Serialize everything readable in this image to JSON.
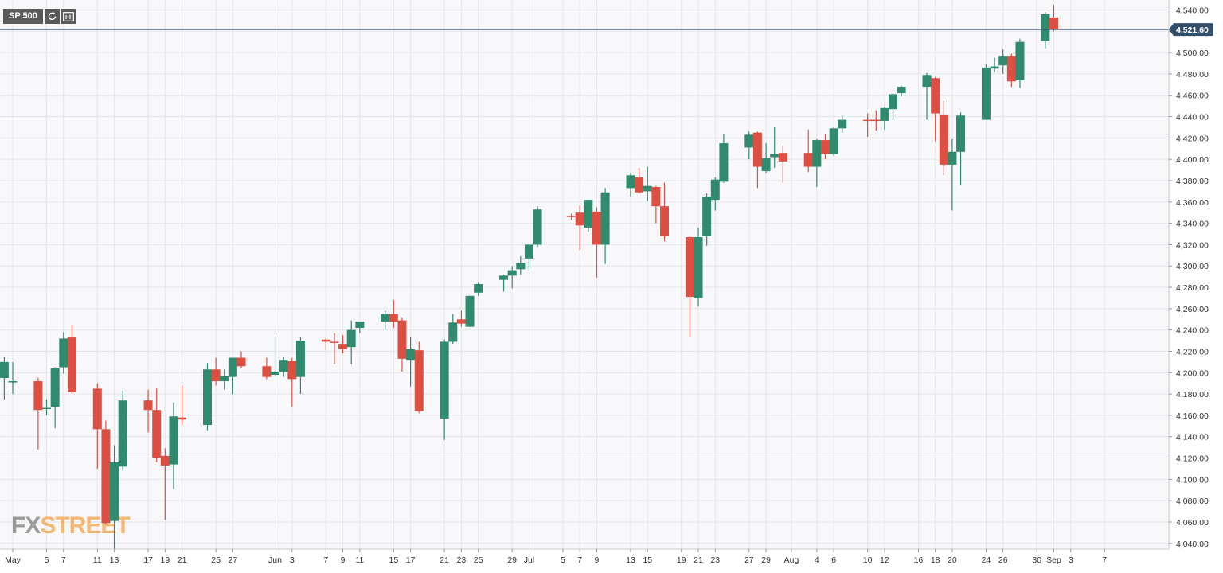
{
  "symbol": "SP 500",
  "watermark": "FXSTREET",
  "toolbar": {
    "refresh_icon": "refresh-icon",
    "settings_icon": "chart-settings-icon"
  },
  "colors": {
    "up": "#2f8a6e",
    "down": "#dd4f43",
    "wick_up": "#2f8a6e",
    "wick_down": "#dd4f43",
    "price_line": "#314f6b",
    "grid": "#e6e6ea",
    "axis_text": "#333333",
    "watermark_fx": "#7b7b7b",
    "watermark_street": "#f3a34a"
  },
  "chart_data": {
    "type": "candlestick",
    "current_price": 4521.6,
    "current_price_label": "4,521.60",
    "grid": true,
    "ylim": [
      4034,
      4547
    ],
    "y_ticks": [
      4040,
      4060,
      4080,
      4100,
      4120,
      4140,
      4160,
      4180,
      4200,
      4220,
      4240,
      4260,
      4280,
      4300,
      4320,
      4340,
      4360,
      4380,
      4400,
      4420,
      4440,
      4460,
      4480,
      4500,
      4520,
      4540
    ],
    "x_ticks": [
      {
        "label": "May",
        "day": 0
      },
      {
        "label": "5",
        "day": 4
      },
      {
        "label": "7",
        "day": 6
      },
      {
        "label": "11",
        "day": 10
      },
      {
        "label": "13",
        "day": 12
      },
      {
        "label": "17",
        "day": 16
      },
      {
        "label": "19",
        "day": 18
      },
      {
        "label": "21",
        "day": 20
      },
      {
        "label": "25",
        "day": 24
      },
      {
        "label": "27",
        "day": 26
      },
      {
        "label": "Jun",
        "day": 31
      },
      {
        "label": "3",
        "day": 33
      },
      {
        "label": "7",
        "day": 37
      },
      {
        "label": "9",
        "day": 39
      },
      {
        "label": "11",
        "day": 41
      },
      {
        "label": "15",
        "day": 45
      },
      {
        "label": "17",
        "day": 47
      },
      {
        "label": "21",
        "day": 51
      },
      {
        "label": "23",
        "day": 53
      },
      {
        "label": "25",
        "day": 55
      },
      {
        "label": "29",
        "day": 59
      },
      {
        "label": "Jul",
        "day": 61
      },
      {
        "label": "5",
        "day": 65
      },
      {
        "label": "7",
        "day": 67
      },
      {
        "label": "9",
        "day": 69
      },
      {
        "label": "13",
        "day": 73
      },
      {
        "label": "15",
        "day": 75
      },
      {
        "label": "19",
        "day": 79
      },
      {
        "label": "21",
        "day": 81
      },
      {
        "label": "23",
        "day": 83
      },
      {
        "label": "27",
        "day": 87
      },
      {
        "label": "29",
        "day": 89
      },
      {
        "label": "Aug",
        "day": 92
      },
      {
        "label": "4",
        "day": 95
      },
      {
        "label": "6",
        "day": 97
      },
      {
        "label": "10",
        "day": 101
      },
      {
        "label": "12",
        "day": 103
      },
      {
        "label": "16",
        "day": 107
      },
      {
        "label": "18",
        "day": 109
      },
      {
        "label": "20",
        "day": 111
      },
      {
        "label": "24",
        "day": 115
      },
      {
        "label": "26",
        "day": 117
      },
      {
        "label": "30",
        "day": 121
      },
      {
        "label": "Sep",
        "day": 123
      },
      {
        "label": "3",
        "day": 125
      },
      {
        "label": "7",
        "day": 129
      }
    ],
    "candles": [
      {
        "day": -1,
        "open": 4195,
        "high": 4215,
        "low": 4175,
        "close": 4210
      },
      {
        "day": 0,
        "open": 4191,
        "high": 4210,
        "low": 4180,
        "close": 4192
      },
      {
        "day": 3,
        "open": 4192,
        "high": 4195,
        "low": 4128,
        "close": 4165
      },
      {
        "day": 4,
        "open": 4166,
        "high": 4175,
        "low": 4160,
        "close": 4167
      },
      {
        "day": 5,
        "open": 4168,
        "high": 4205,
        "low": 4148,
        "close": 4204
      },
      {
        "day": 6,
        "open": 4205,
        "high": 4238,
        "low": 4199,
        "close": 4232
      },
      {
        "day": 7,
        "open": 4233,
        "high": 4245,
        "low": 4180,
        "close": 4182
      },
      {
        "day": 10,
        "open": 4185,
        "high": 4190,
        "low": 4110,
        "close": 4147
      },
      {
        "day": 11,
        "open": 4147,
        "high": 4155,
        "low": 4058,
        "close": 4059
      },
      {
        "day": 12,
        "open": 4061,
        "high": 4132,
        "low": 4035,
        "close": 4116
      },
      {
        "day": 13,
        "open": 4112,
        "high": 4183,
        "low": 4108,
        "close": 4174
      },
      {
        "day": 16,
        "open": 4174,
        "high": 4184,
        "low": 4144,
        "close": 4165
      },
      {
        "day": 17,
        "open": 4165,
        "high": 4185,
        "low": 4116,
        "close": 4120
      },
      {
        "day": 18,
        "open": 4122,
        "high": 4129,
        "low": 4062,
        "close": 4113
      },
      {
        "day": 19,
        "open": 4114,
        "high": 4172,
        "low": 4091,
        "close": 4159
      },
      {
        "day": 20,
        "open": 4158,
        "high": 4188,
        "low": 4151,
        "close": 4156
      },
      {
        "day": 23,
        "open": 4151,
        "high": 4209,
        "low": 4146,
        "close": 4203
      },
      {
        "day": 24,
        "open": 4203,
        "high": 4214,
        "low": 4188,
        "close": 4192
      },
      {
        "day": 25,
        "open": 4192,
        "high": 4203,
        "low": 4184,
        "close": 4197
      },
      {
        "day": 26,
        "open": 4196,
        "high": 4214,
        "low": 4180,
        "close": 4214
      },
      {
        "day": 27,
        "open": 4214,
        "high": 4220,
        "low": 4204,
        "close": 4206
      },
      {
        "day": 30,
        "open": 4206,
        "high": 4214,
        "low": 4194,
        "close": 4196
      },
      {
        "day": 31,
        "open": 4198,
        "high": 4234,
        "low": 4197,
        "close": 4201
      },
      {
        "day": 32,
        "open": 4201,
        "high": 4215,
        "low": 4196,
        "close": 4212
      },
      {
        "day": 33,
        "open": 4211,
        "high": 4214,
        "low": 4168,
        "close": 4194
      },
      {
        "day": 34,
        "open": 4196,
        "high": 4233,
        "low": 4180,
        "close": 4230
      },
      {
        "day": 37,
        "open": 4231,
        "high": 4233,
        "low": 4221,
        "close": 4229
      },
      {
        "day": 38,
        "open": 4229,
        "high": 4237,
        "low": 4208,
        "close": 4228
      },
      {
        "day": 39,
        "open": 4227,
        "high": 4235,
        "low": 4218,
        "close": 4222
      },
      {
        "day": 40,
        "open": 4224,
        "high": 4249,
        "low": 4208,
        "close": 4240
      },
      {
        "day": 41,
        "open": 4242,
        "high": 4248,
        "low": 4237,
        "close": 4248
      },
      {
        "day": 44,
        "open": 4248,
        "high": 4258,
        "low": 4240,
        "close": 4255
      },
      {
        "day": 45,
        "open": 4255,
        "high": 4268,
        "low": 4242,
        "close": 4248
      },
      {
        "day": 46,
        "open": 4249,
        "high": 4252,
        "low": 4201,
        "close": 4213
      },
      {
        "day": 47,
        "open": 4212,
        "high": 4233,
        "low": 4187,
        "close": 4222
      },
      {
        "day": 48,
        "open": 4221,
        "high": 4229,
        "low": 4162,
        "close": 4164
      },
      {
        "day": 51,
        "open": 4157,
        "high": 4231,
        "low": 4137,
        "close": 4229
      },
      {
        "day": 52,
        "open": 4229,
        "high": 4255,
        "low": 4227,
        "close": 4247
      },
      {
        "day": 53,
        "open": 4250,
        "high": 4258,
        "low": 4243,
        "close": 4246
      },
      {
        "day": 54,
        "open": 4243,
        "high": 4272,
        "low": 4243,
        "close": 4272
      },
      {
        "day": 55,
        "open": 4275,
        "high": 4285,
        "low": 4272,
        "close": 4283
      },
      {
        "day": 58,
        "open": 4287,
        "high": 4292,
        "low": 4276,
        "close": 4291
      },
      {
        "day": 59,
        "open": 4291,
        "high": 4300,
        "low": 4279,
        "close": 4296
      },
      {
        "day": 60,
        "open": 4297,
        "high": 4309,
        "low": 4292,
        "close": 4303
      },
      {
        "day": 61,
        "open": 4307,
        "high": 4321,
        "low": 4296,
        "close": 4320
      },
      {
        "day": 62,
        "open": 4320,
        "high": 4356,
        "low": 4318,
        "close": 4353
      },
      {
        "day": 66,
        "open": 4347,
        "high": 4349,
        "low": 4343,
        "close": 4346
      },
      {
        "day": 67,
        "open": 4350,
        "high": 4357,
        "low": 4315,
        "close": 4338
      },
      {
        "day": 68,
        "open": 4336,
        "high": 4362,
        "low": 4332,
        "close": 4362
      },
      {
        "day": 69,
        "open": 4351,
        "high": 4355,
        "low": 4289,
        "close": 4320
      },
      {
        "day": 70,
        "open": 4320,
        "high": 4373,
        "low": 4302,
        "close": 4369
      },
      {
        "day": 73,
        "open": 4373,
        "high": 4387,
        "low": 4365,
        "close": 4385
      },
      {
        "day": 74,
        "open": 4383,
        "high": 4392,
        "low": 4367,
        "close": 4369
      },
      {
        "day": 75,
        "open": 4370,
        "high": 4393,
        "low": 4361,
        "close": 4375
      },
      {
        "day": 76,
        "open": 4374,
        "high": 4375,
        "low": 4340,
        "close": 4356
      },
      {
        "day": 77,
        "open": 4356,
        "high": 4378,
        "low": 4323,
        "close": 4328
      },
      {
        "day": 80,
        "open": 4327,
        "high": 4328,
        "low": 4233,
        "close": 4271
      },
      {
        "day": 81,
        "open": 4270,
        "high": 4336,
        "low": 4262,
        "close": 4327
      },
      {
        "day": 82,
        "open": 4328,
        "high": 4368,
        "low": 4319,
        "close": 4365
      },
      {
        "day": 83,
        "open": 4362,
        "high": 4383,
        "low": 4352,
        "close": 4381
      },
      {
        "day": 84,
        "open": 4379,
        "high": 4424,
        "low": 4378,
        "close": 4415
      },
      {
        "day": 87,
        "open": 4411,
        "high": 4426,
        "low": 4400,
        "close": 4423
      },
      {
        "day": 88,
        "open": 4425,
        "high": 4426,
        "low": 4373,
        "close": 4393
      },
      {
        "day": 89,
        "open": 4389,
        "high": 4415,
        "low": 4387,
        "close": 4401
      },
      {
        "day": 90,
        "open": 4402,
        "high": 4430,
        "low": 4392,
        "close": 4405
      },
      {
        "day": 91,
        "open": 4406,
        "high": 4413,
        "low": 4378,
        "close": 4398
      },
      {
        "day": 94,
        "open": 4406,
        "high": 4428,
        "low": 4388,
        "close": 4393
      },
      {
        "day": 95,
        "open": 4393,
        "high": 4419,
        "low": 4374,
        "close": 4418
      },
      {
        "day": 96,
        "open": 4418,
        "high": 4424,
        "low": 4400,
        "close": 4405
      },
      {
        "day": 97,
        "open": 4405,
        "high": 4430,
        "low": 4403,
        "close": 4429
      },
      {
        "day": 98,
        "open": 4429,
        "high": 4441,
        "low": 4425,
        "close": 4437
      },
      {
        "day": 101,
        "open": 4437,
        "high": 4443,
        "low": 4421,
        "close": 4436
      },
      {
        "day": 102,
        "open": 4437,
        "high": 4446,
        "low": 4427,
        "close": 4436
      },
      {
        "day": 103,
        "open": 4436,
        "high": 4449,
        "low": 4428,
        "close": 4448
      },
      {
        "day": 104,
        "open": 4447,
        "high": 4462,
        "low": 4437,
        "close": 4461
      },
      {
        "day": 105,
        "open": 4462,
        "high": 4469,
        "low": 4459,
        "close": 4468
      },
      {
        "day": 108,
        "open": 4468,
        "high": 4481,
        "low": 4437,
        "close": 4479
      },
      {
        "day": 109,
        "open": 4476,
        "high": 4477,
        "low": 4417,
        "close": 4443
      },
      {
        "day": 110,
        "open": 4442,
        "high": 4455,
        "low": 4385,
        "close": 4395
      },
      {
        "day": 111,
        "open": 4395,
        "high": 4419,
        "low": 4352,
        "close": 4407
      },
      {
        "day": 112,
        "open": 4407,
        "high": 4444,
        "low": 4376,
        "close": 4441
      },
      {
        "day": 115,
        "open": 4437,
        "high": 4489,
        "low": 4437,
        "close": 4486
      },
      {
        "day": 116,
        "open": 4485,
        "high": 4495,
        "low": 4482,
        "close": 4487
      },
      {
        "day": 117,
        "open": 4488,
        "high": 4503,
        "low": 4480,
        "close": 4497
      },
      {
        "day": 118,
        "open": 4497,
        "high": 4499,
        "low": 4468,
        "close": 4473
      },
      {
        "day": 119,
        "open": 4474,
        "high": 4513,
        "low": 4467,
        "close": 4510
      },
      {
        "day": 122,
        "open": 4511,
        "high": 4538,
        "low": 4504,
        "close": 4536
      },
      {
        "day": 123,
        "open": 4533,
        "high": 4545,
        "low": 4520,
        "close": 4521.6
      }
    ]
  }
}
